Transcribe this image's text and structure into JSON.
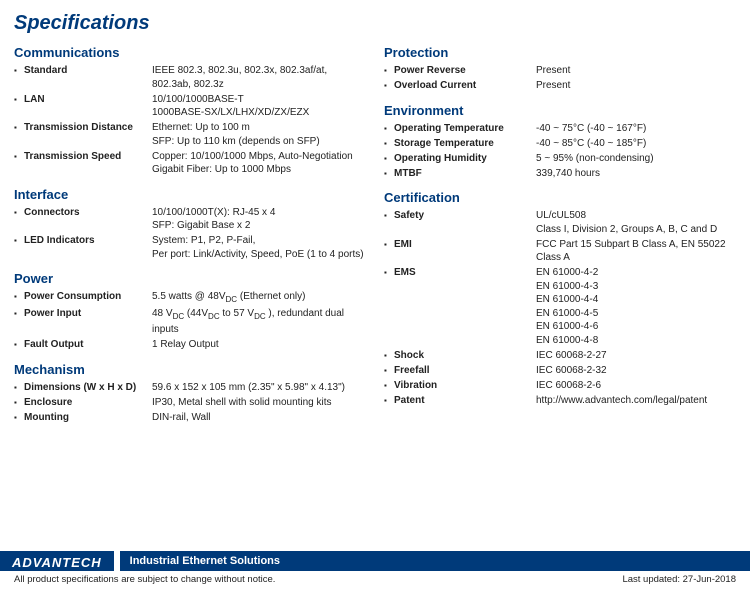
{
  "title": "Specifications",
  "columns": [
    {
      "sections": [
        {
          "header": "Communications",
          "items": [
            {
              "label": "Standard",
              "values": [
                "IEEE 802.3, 802.3u, 802.3x, 802.3af/at,",
                "802.3ab, 802.3z"
              ]
            },
            {
              "label": "LAN",
              "values": [
                "10/100/1000BASE-T",
                "1000BASE-SX/LX/LHX/XD/ZX/EZX"
              ]
            },
            {
              "label": "Transmission Distance",
              "values": [
                "Ethernet: Up to 100 m",
                "SFP: Up to 110 km (depends on SFP)"
              ]
            },
            {
              "label": "Transmission Speed",
              "values": [
                "Copper: 10/100/1000 Mbps, Auto-Negotiation",
                "Gigabit Fiber: Up to 1000 Mbps"
              ]
            }
          ]
        },
        {
          "header": "Interface",
          "items": [
            {
              "label": "Connectors",
              "values": [
                "10/100/1000T(X): RJ-45 x 4",
                "SFP: Gigabit Base x 2"
              ]
            },
            {
              "label": "LED Indicators",
              "values": [
                "System: P1, P2, P-Fail,",
                "Per port: Link/Activity, Speed, PoE (1 to 4 ports)"
              ]
            }
          ]
        },
        {
          "header": "Power",
          "items": [
            {
              "label": "Power Consumption",
              "values": [
                "5.5 watts @ 48V<sub>DC</sub>  (Ethernet only)"
              ]
            },
            {
              "label": "Power Input",
              "values": [
                "48 V<sub>DC</sub> (44V<sub>DC</sub> to 57 V<sub>DC</sub> ), redundant dual inputs"
              ]
            },
            {
              "label": "Fault Output",
              "values": [
                "1 Relay Output"
              ]
            }
          ]
        },
        {
          "header": "Mechanism",
          "items": [
            {
              "label": "Dimensions (W x H x D)",
              "values": [
                "59.6 x 152 x 105 mm (2.35\" x 5.98\" x 4.13\")"
              ]
            },
            {
              "label": "Enclosure",
              "values": [
                "IP30, Metal shell with solid mounting kits"
              ]
            },
            {
              "label": "Mounting",
              "values": [
                "DIN-rail, Wall"
              ]
            }
          ]
        }
      ]
    },
    {
      "sections": [
        {
          "header": "Protection",
          "items": [
            {
              "label": "Power Reverse",
              "values": [
                "Present"
              ]
            },
            {
              "label": "Overload Current",
              "values": [
                "Present"
              ]
            }
          ]
        },
        {
          "header": "Environment",
          "items": [
            {
              "label": "Operating Temperature",
              "values": [
                "-40 ~ 75°C  (-40 ~ 167°F)"
              ]
            },
            {
              "label": "Storage Temperature",
              "values": [
                "-40 ~ 85°C  (-40 ~ 185°F)"
              ]
            },
            {
              "label": "Operating Humidity",
              "values": [
                "5 ~ 95% (non-condensing)"
              ]
            },
            {
              "label": "MTBF",
              "values": [
                "339,740 hours"
              ]
            }
          ]
        },
        {
          "header": "Certification",
          "items": [
            {
              "label": "Safety",
              "values": [
                "UL/cUL508",
                "Class I, Division 2, Groups A, B, C and D"
              ]
            },
            {
              "label": "EMI",
              "values": [
                "FCC Part 15 Subpart B Class A,  EN 55022",
                "Class A"
              ]
            },
            {
              "label": "EMS",
              "values": [
                "EN 61000-4-2",
                "EN 61000-4-3",
                "EN 61000-4-4",
                "EN 61000-4-5",
                "EN 61000-4-6",
                "EN 61000-4-8"
              ]
            },
            {
              "label": "Shock",
              "values": [
                "IEC 60068-2-27"
              ]
            },
            {
              "label": "Freefall",
              "values": [
                "IEC 60068-2-32"
              ]
            },
            {
              "label": "Vibration",
              "values": [
                "IEC 60068-2-6"
              ]
            },
            {
              "label": "Patent",
              "values": [
                "http://www.advantech.com/legal/patent"
              ]
            }
          ]
        }
      ]
    }
  ],
  "footer": {
    "brand": "ADVANTECH",
    "tagline": "Industrial Ethernet Solutions",
    "disclaimer": "All product specifications are subject to change without notice.",
    "updated": "Last updated: 27-Jun-2018"
  }
}
